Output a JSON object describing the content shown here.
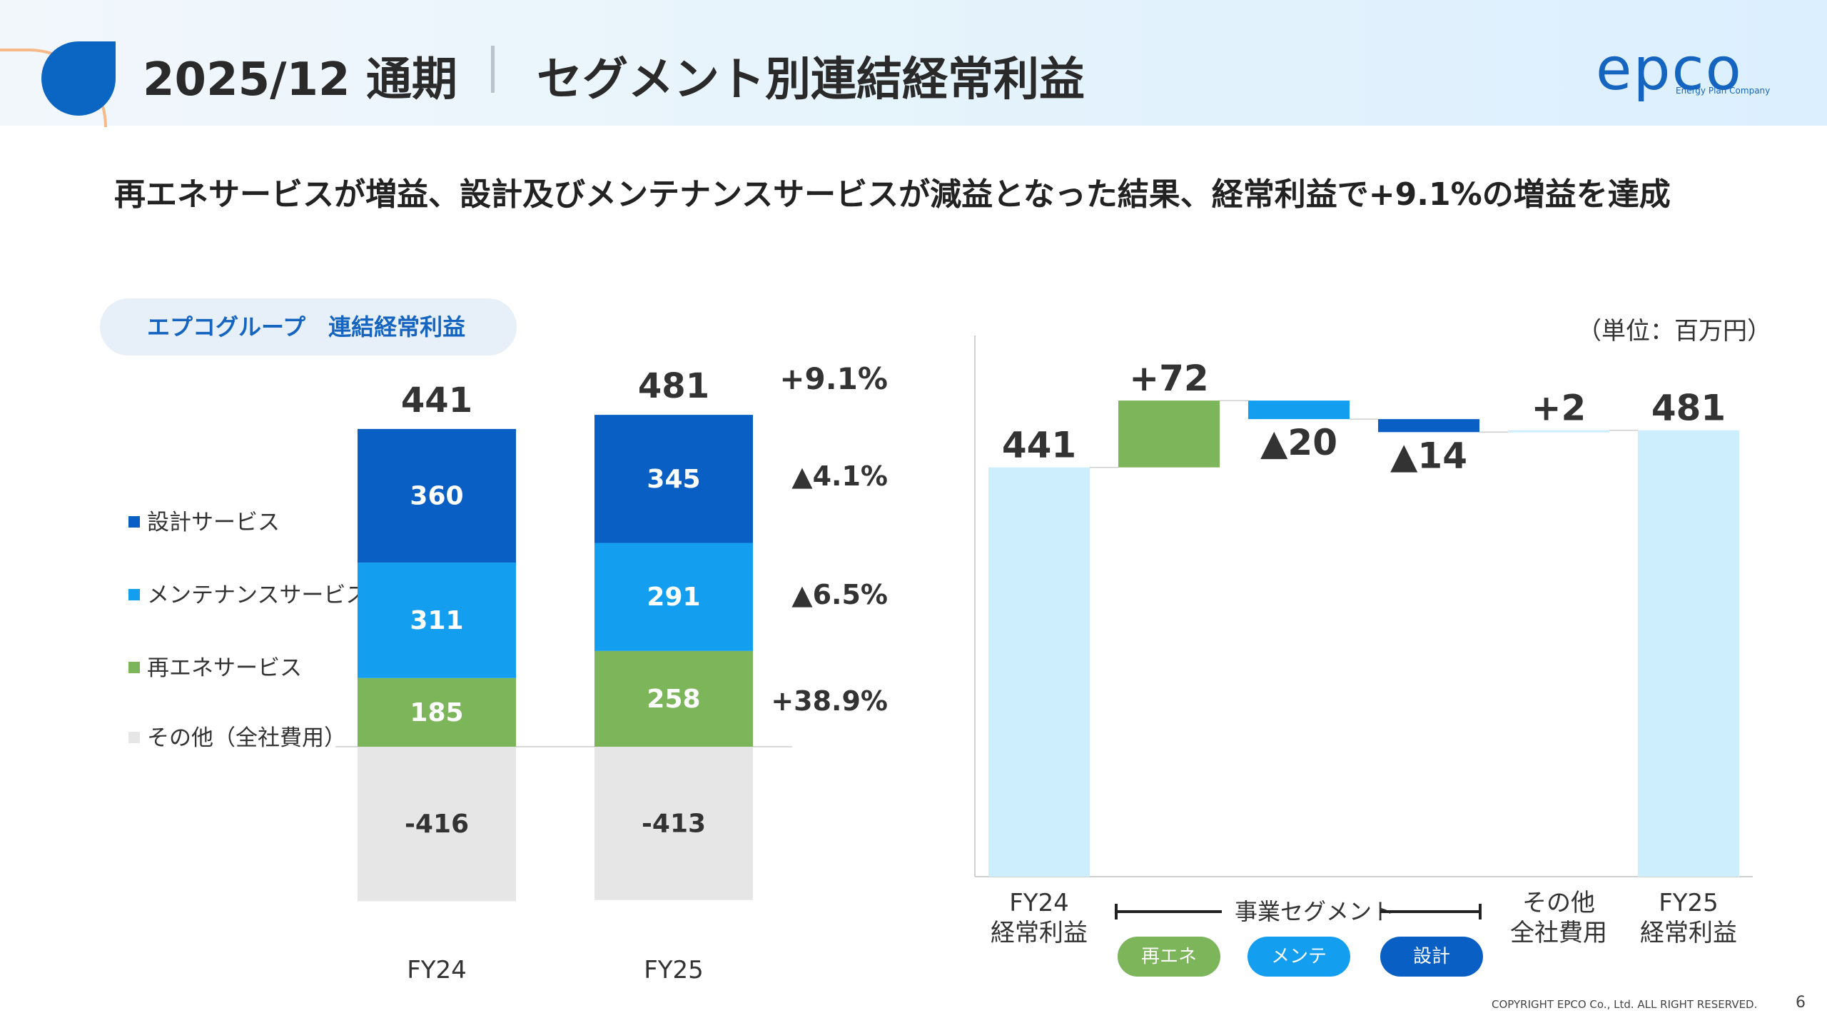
{
  "header": {
    "period": "2025/12 通期",
    "title": "セグメント別連結経常利益",
    "logo_text": "epco",
    "logo_sub": "Energy Plan Company"
  },
  "headline": "再エネサービスが増益、設計及びメンテナンスサービスが減益となった結果、経常利益で+9.1%の増益を達成",
  "group_label": "エプコグループ　連結経常利益",
  "unit": "（単位：百万円）",
  "legend": [
    {
      "label": "設計サービス",
      "color": "#0a5fc4"
    },
    {
      "label": "メンテナンスサービス",
      "color": "#149eef"
    },
    {
      "label": "再エネサービス",
      "color": "#7db55a"
    },
    {
      "label": "その他（全社費用）",
      "color": "#e6e6e6"
    }
  ],
  "segment": {
    "label": "事業セグメント",
    "pills": [
      {
        "label": "再エネ",
        "color": "#7db55a"
      },
      {
        "label": "メンテ",
        "color": "#149eef"
      },
      {
        "label": "設計",
        "color": "#0a5fc4"
      }
    ]
  },
  "footer": {
    "copyright": "COPYRIGHT EPCO Co., Ltd. ALL RIGHT RESERVED.",
    "page": "6"
  },
  "chart_data": [
    {
      "type": "bar",
      "stacked": true,
      "categories": [
        "FY24",
        "FY25"
      ],
      "totals": [
        441,
        481
      ],
      "series": [
        {
          "name": "設計サービス",
          "values": [
            360,
            345
          ],
          "change": "▲4.1%",
          "color": "#0a5fc4"
        },
        {
          "name": "メンテナンスサービス",
          "values": [
            311,
            291
          ],
          "change": "▲6.5%",
          "color": "#149eef"
        },
        {
          "name": "再エネサービス",
          "values": [
            185,
            258
          ],
          "change": "+38.9%",
          "color": "#7db55a"
        },
        {
          "name": "その他（全社費用）",
          "values": [
            -416,
            -413
          ],
          "color": "#e6e6e6"
        }
      ],
      "total_change": "+9.1%"
    },
    {
      "type": "bar",
      "subtype": "waterfall",
      "steps": [
        {
          "label": [
            "FY24",
            "経常利益"
          ],
          "kind": "total",
          "value": 441,
          "text": "441",
          "color": "#cdeefd"
        },
        {
          "label": [],
          "kind": "delta",
          "value": 72,
          "text": "+72",
          "color": "#7db55a"
        },
        {
          "label": [],
          "kind": "delta",
          "value": -20,
          "text": "▲20",
          "color": "#149eef"
        },
        {
          "label": [],
          "kind": "delta",
          "value": -14,
          "text": "▲14",
          "color": "#0a5fc4"
        },
        {
          "label": [
            "その他",
            "全社費用"
          ],
          "kind": "delta",
          "value": 2,
          "text": "+2",
          "color": "#cdeefd"
        },
        {
          "label": [
            "FY25",
            "経常利益"
          ],
          "kind": "total",
          "value": 481,
          "text": "481",
          "color": "#cdeefd"
        }
      ]
    }
  ]
}
